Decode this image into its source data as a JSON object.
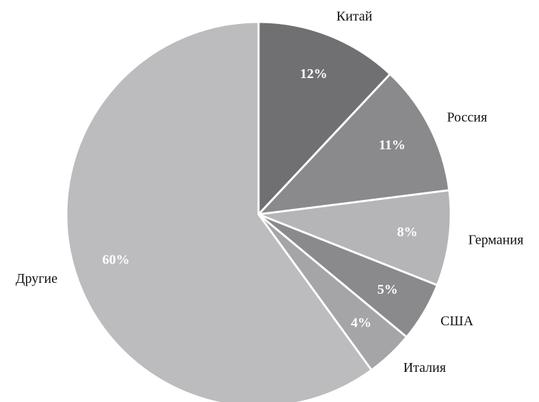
{
  "chart_data": {
    "type": "pie",
    "categories": [
      "Китай",
      "Россия",
      "Германия",
      "США",
      "Италия",
      "Другие"
    ],
    "values": [
      12,
      11,
      8,
      5,
      4,
      60
    ],
    "value_labels": [
      "12%",
      "11%",
      "8%",
      "5%",
      "4%",
      "60%"
    ],
    "colors": [
      "#707073",
      "#8a8a8d",
      "#b5b5b8",
      "#8a8a8d",
      "#a5a5a8",
      "#bcbcbf"
    ]
  }
}
